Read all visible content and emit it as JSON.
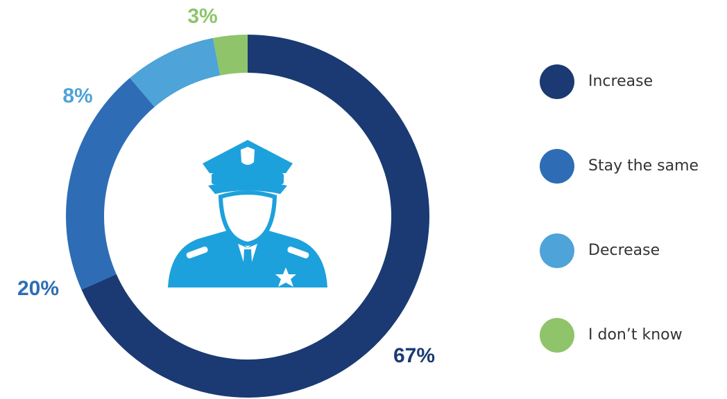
{
  "chart_data": {
    "type": "donut",
    "categories": [
      "Increase",
      "Stay the same",
      "Decrease",
      "I don’t know"
    ],
    "values": [
      67,
      20,
      8,
      3
    ],
    "value_labels": [
      "67%",
      "20%",
      "8%",
      "3%"
    ],
    "colors": [
      "#1b3a73",
      "#2e6db5",
      "#4ea3d8",
      "#8fc46a"
    ],
    "legend": "right"
  }
}
